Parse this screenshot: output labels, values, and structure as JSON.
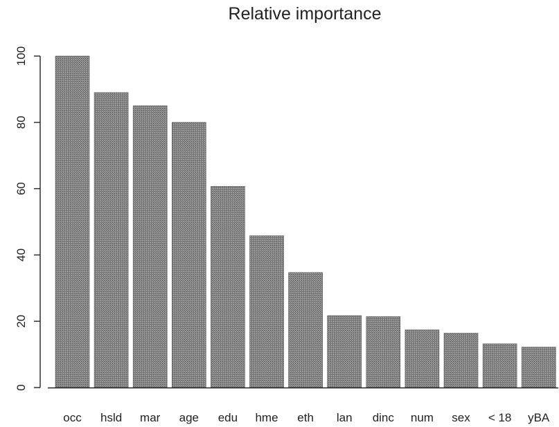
{
  "chart_data": {
    "type": "bar",
    "title": "Relative importance",
    "categories": [
      "occ",
      "hsld",
      "mar",
      "age",
      "edu",
      "hme",
      "eth",
      "lan",
      "dinc",
      "num",
      "sex",
      "< 18",
      "yBA"
    ],
    "values": [
      100,
      89,
      85,
      80,
      60.7,
      45.8,
      34.7,
      21.7,
      21.4,
      17.4,
      16.4,
      13.2,
      12.2
    ],
    "ylim": [
      0,
      100
    ],
    "yticks": [
      0,
      20,
      40,
      60,
      80,
      100
    ],
    "xlabel": "",
    "ylabel": "",
    "grid": false,
    "bar_color": "#7a7a7a"
  }
}
